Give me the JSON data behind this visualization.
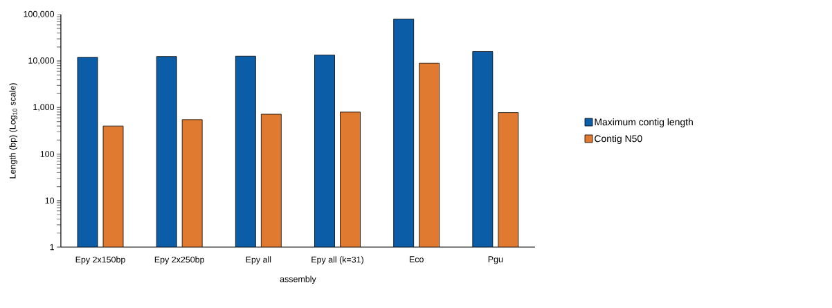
{
  "chart_data": {
    "type": "bar",
    "xlabel": "assembly",
    "ylabel": "Length (bp) (Log$_{10}$ scale)",
    "categories": [
      "Epy 2x150bp",
      "Epy 2x250bp",
      "Epy all",
      "Epy all (k=31)",
      "Eco",
      "Pgu"
    ],
    "series": [
      {
        "name": "Maximum contig length",
        "color": "#0c5da8",
        "values": [
          12000,
          12500,
          12700,
          13500,
          80000,
          16000
        ]
      },
      {
        "name": "Contig N50",
        "color": "#e07a31",
        "values": [
          400,
          550,
          720,
          800,
          9000,
          780
        ]
      }
    ],
    "log": true,
    "ylim": [
      1,
      100000
    ],
    "yticks": [
      1,
      10,
      100,
      {
        "value": 1000,
        "label": "1,000"
      },
      {
        "value": 10000,
        "label": "10,000"
      },
      {
        "value": 100000,
        "label": "100,000"
      }
    ],
    "legend": "right"
  }
}
